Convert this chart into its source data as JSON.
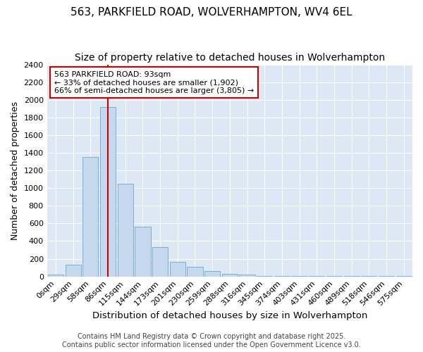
{
  "title1": "563, PARKFIELD ROAD, WOLVERHAMPTON, WV4 6EL",
  "title2": "Size of property relative to detached houses in Wolverhampton",
  "xlabel": "Distribution of detached houses by size in Wolverhampton",
  "ylabel": "Number of detached properties",
  "bar_labels": [
    "0sqm",
    "29sqm",
    "58sqm",
    "86sqm",
    "115sqm",
    "144sqm",
    "173sqm",
    "201sqm",
    "230sqm",
    "259sqm",
    "288sqm",
    "316sqm",
    "345sqm",
    "374sqm",
    "403sqm",
    "431sqm",
    "460sqm",
    "489sqm",
    "518sqm",
    "546sqm",
    "575sqm"
  ],
  "bar_values": [
    20,
    130,
    1350,
    1920,
    1050,
    560,
    330,
    165,
    105,
    60,
    30,
    20,
    5,
    5,
    3,
    2,
    2,
    1,
    1,
    1,
    1
  ],
  "bar_color": "#c5d8ee",
  "bar_edgecolor": "#7bafd4",
  "vline_x": 3,
  "vline_color": "#cc0000",
  "annotation_text": "563 PARKFIELD ROAD: 93sqm\n← 33% of detached houses are smaller (1,902)\n66% of semi-detached houses are larger (3,805) →",
  "annotation_box_edgecolor": "#cc0000",
  "annotation_box_facecolor": "#ffffff",
  "ylim": [
    0,
    2400
  ],
  "yticks": [
    0,
    200,
    400,
    600,
    800,
    1000,
    1200,
    1400,
    1600,
    1800,
    2000,
    2200,
    2400
  ],
  "plot_bg_color": "#dce8f5",
  "fig_bg_color": "#ffffff",
  "footer_text": "Contains HM Land Registry data © Crown copyright and database right 2025.\nContains public sector information licensed under the Open Government Licence v3.0.",
  "title1_fontsize": 11,
  "title2_fontsize": 10,
  "xlabel_fontsize": 9.5,
  "ylabel_fontsize": 9,
  "tick_fontsize": 8,
  "footer_fontsize": 7
}
